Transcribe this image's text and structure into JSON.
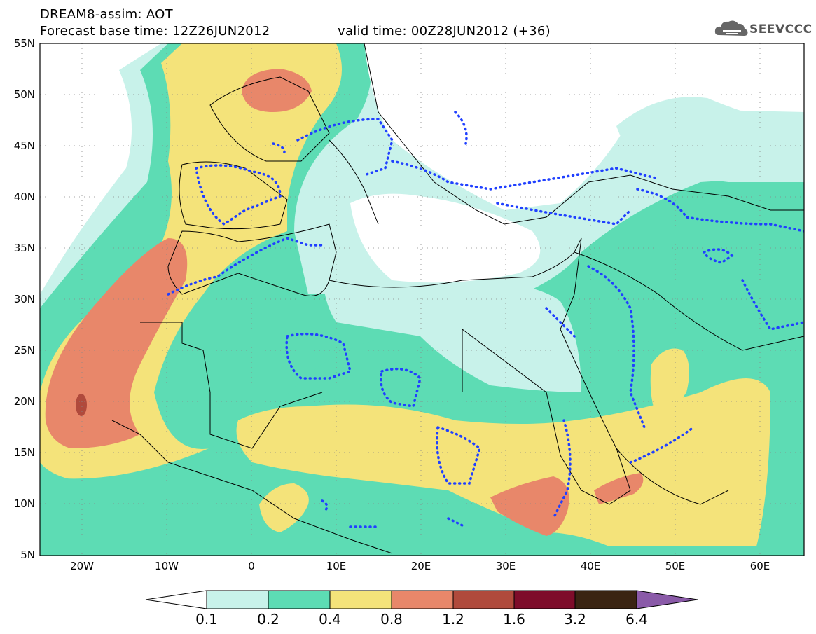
{
  "header": {
    "title_line1": "DREAM8-assim: AOT",
    "title_line2": "Forecast base time: 12Z26JUN2012",
    "valid_time": "valid time: 00Z28JUN2012 (+36)",
    "logo_text": "SEEVCCC"
  },
  "map": {
    "projection": "lat-lon",
    "lon_range": [
      -25,
      65
    ],
    "lat_range": [
      5,
      55
    ],
    "lat_ticks": [
      "55N",
      "50N",
      "45N",
      "40N",
      "35N",
      "30N",
      "25N",
      "20N",
      "15N",
      "10N",
      "5N"
    ],
    "lon_ticks": [
      "20W",
      "10W",
      "0",
      "10E",
      "20E",
      "30E",
      "40E",
      "50E",
      "60E"
    ],
    "gridlines": true,
    "contour_line_color": "#2040ff"
  },
  "colorbar": {
    "labels": [
      "0.1",
      "0.2",
      "0.4",
      "0.8",
      "1.2",
      "1.6",
      "3.2",
      "6.4"
    ],
    "colors": [
      "#c8f2ea",
      "#5ddcb4",
      "#f4e37a",
      "#e8876a",
      "#b04a3c",
      "#7e0c2a",
      "#3a2412",
      "#8a5aa8"
    ]
  },
  "icons": {
    "logo": "cloud-logo-icon"
  }
}
